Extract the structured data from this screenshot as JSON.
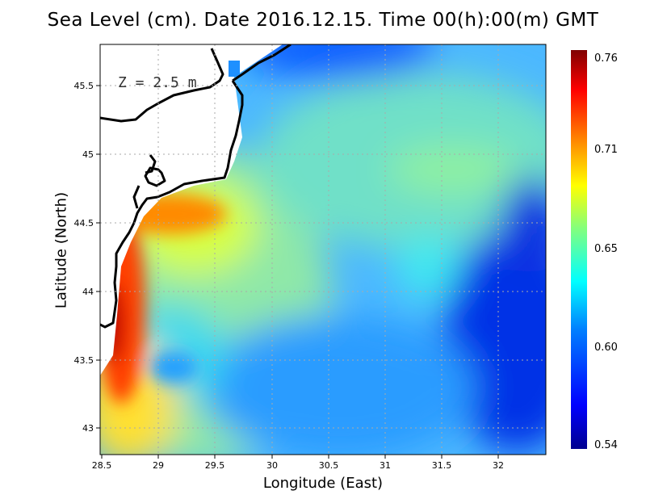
{
  "title": "Sea Level (cm). Date 2016.12.15. Time 00(h):00(m) GMT",
  "depth_label": "Z = 2.5 m",
  "chart_data": {
    "type": "heatmap",
    "title": "Sea Level (cm). Date 2016.12.15. Time 00(h):00(m) GMT",
    "xlabel": "Longitude (East)",
    "ylabel": "Latitude (North)",
    "xlim": [
      28.5,
      32.4
    ],
    "ylim": [
      42.8,
      45.8
    ],
    "x_ticks": [
      "28.5",
      "29",
      "29.5",
      "30",
      "30.5",
      "31",
      "31.5",
      "32"
    ],
    "y_ticks": [
      "43",
      "43.5",
      "44",
      "44.5",
      "45",
      "45.5"
    ],
    "grid": true,
    "colorbar": {
      "min": 0.54,
      "max": 0.76,
      "ticks": [
        "0.76",
        "0.71",
        "0.65",
        "0.60",
        "0.54"
      ],
      "colormap": [
        "#00008f",
        "#0000ff",
        "#0080ff",
        "#00ffff",
        "#80ff80",
        "#ffff00",
        "#ff8000",
        "#ff0000",
        "#800000"
      ]
    },
    "field_samples": [
      {
        "lon": 28.55,
        "lat": 43.6,
        "value": 0.745
      },
      {
        "lon": 28.65,
        "lat": 44.2,
        "value": 0.72
      },
      {
        "lon": 28.8,
        "lat": 44.5,
        "value": 0.7
      },
      {
        "lon": 29.2,
        "lat": 44.72,
        "value": 0.7
      },
      {
        "lon": 29.0,
        "lat": 43.0,
        "value": 0.67
      },
      {
        "lon": 29.2,
        "lat": 43.4,
        "value": 0.6
      },
      {
        "lon": 29.6,
        "lat": 44.6,
        "value": 0.67
      },
      {
        "lon": 30.0,
        "lat": 44.0,
        "value": 0.635
      },
      {
        "lon": 30.0,
        "lat": 43.0,
        "value": 0.61
      },
      {
        "lon": 30.5,
        "lat": 45.5,
        "value": 0.62
      },
      {
        "lon": 31.0,
        "lat": 44.9,
        "value": 0.64
      },
      {
        "lon": 31.5,
        "lat": 44.2,
        "value": 0.63
      },
      {
        "lon": 31.5,
        "lat": 44.9,
        "value": 0.65
      },
      {
        "lon": 31.8,
        "lat": 42.9,
        "value": 0.6
      },
      {
        "lon": 30.5,
        "lat": 45.8,
        "value": 0.57
      },
      {
        "lon": 32.3,
        "lat": 43.6,
        "value": 0.545
      },
      {
        "lon": 32.2,
        "lat": 44.2,
        "value": 0.56
      },
      {
        "lon": 32.3,
        "lat": 45.2,
        "value": 0.64
      }
    ]
  }
}
